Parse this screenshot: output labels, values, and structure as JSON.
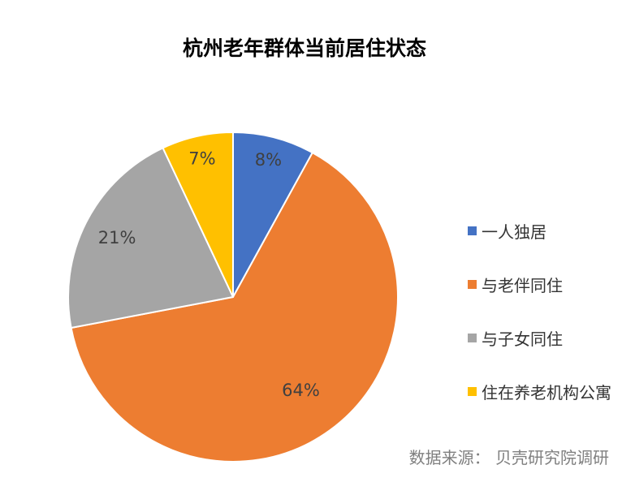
{
  "chart_data": {
    "type": "pie",
    "title": "杭州老年群体当前居住状态",
    "categories": [
      "一人独居",
      "与老伴同住",
      "与子女同住",
      "住在养老机构公寓"
    ],
    "values": [
      8,
      64,
      21,
      7
    ],
    "data_labels": [
      "8%",
      "64%",
      "21%",
      "7%"
    ],
    "colors": [
      "#4472c4",
      "#ed7d31",
      "#a5a5a5",
      "#ffc000"
    ],
    "legend_position": "right",
    "start_angle": "12 o'clock, clockwise"
  },
  "source_note": "数据来源： 贝壳研究院调研"
}
